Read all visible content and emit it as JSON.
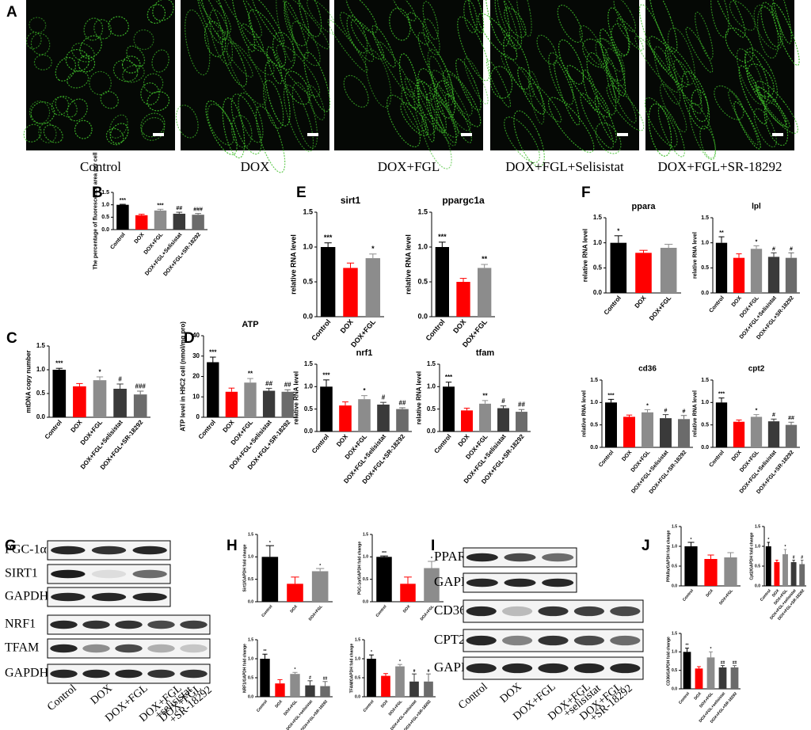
{
  "panel_labels": [
    "A",
    "B",
    "C",
    "D",
    "E",
    "F",
    "G",
    "H",
    "I",
    "J"
  ],
  "image_captions": [
    "Control",
    "DOX",
    "DOX+FGL",
    "DOX+FGL+Selisistat",
    "DOX+FGL+SR-18292"
  ],
  "blots": {
    "G": {
      "rows": [
        "PGC-1α",
        "SIRT1",
        "GAPDH",
        "NRF1",
        "TFAM",
        "GAPDH"
      ],
      "lanes": [
        [
          "Control"
        ],
        [
          "DOX"
        ],
        [
          "DOX+FGL"
        ],
        [
          "DOX+FGL",
          "+selisistat"
        ],
        [
          "DOX+FGL",
          "+SR-18292"
        ]
      ]
    },
    "I": {
      "rows": [
        "PPARα",
        "GAPDH",
        "CD36",
        "CPT2",
        "GAPDH"
      ],
      "lanes": [
        [
          "Control"
        ],
        [
          "DOX"
        ],
        [
          "DOX+FGL"
        ],
        [
          "DOX+FGL",
          "+selisistat"
        ],
        [
          "DOX+FGL",
          "+SR-18292"
        ]
      ]
    }
  },
  "chart_data": [
    {
      "type": "bar",
      "y_label": "The percentage of fluorescence area per cell",
      "categories": [
        "Control",
        "DOX",
        "DOX+FGL",
        "DOX+FGL+Selisistat",
        "DOX+FGL+SR-18292"
      ],
      "values": [
        1.0,
        0.58,
        0.77,
        0.64,
        0.6
      ],
      "errors": [
        0.02,
        0.04,
        0.05,
        0.06,
        0.05
      ],
      "annotations": [
        "***",
        null,
        "***",
        "##",
        "###"
      ],
      "colors": [
        "#000000",
        "#ff0000",
        "#8c8c8c",
        "#3a3a3a",
        "#6b6b6b"
      ],
      "ylim": [
        0,
        1.5
      ],
      "yticks": [
        {
          "value": 0,
          "label": "0.0"
        },
        {
          "value": 0.5,
          "label": "0.5"
        },
        {
          "value": 1,
          "label": "1.0"
        },
        {
          "value": 1.5,
          "label": "1.5"
        }
      ]
    },
    {
      "type": "bar",
      "y_label": "mtDNA copy number",
      "categories": [
        "Control",
        "DOX",
        "DOX+FGL",
        "DOX+FGL+Selisistat",
        "DOX+FGL+SR-18292"
      ],
      "values": [
        1.0,
        0.65,
        0.78,
        0.6,
        0.48
      ],
      "errors": [
        0.03,
        0.06,
        0.07,
        0.1,
        0.07
      ],
      "annotations": [
        "***",
        null,
        "*",
        "#",
        "###"
      ],
      "colors": [
        "#000000",
        "#ff0000",
        "#8c8c8c",
        "#3a3a3a",
        "#6b6b6b"
      ],
      "ylim": [
        0,
        1.5
      ],
      "yticks": [
        {
          "value": 0,
          "label": "0.0"
        },
        {
          "value": 0.5,
          "label": "0.5"
        },
        {
          "value": 1,
          "label": "1.0"
        },
        {
          "value": 1.5,
          "label": "1.5"
        }
      ]
    },
    {
      "type": "bar",
      "title": "ATP",
      "y_label": "ATP level in H9C2 cell (nmol/mg pro)",
      "categories": [
        "Control",
        "DOX",
        "DOX+FGL",
        "DOX+FGL+Selisistat",
        "DOX+FGL+SR-18292"
      ],
      "values": [
        27,
        12.5,
        17,
        13,
        12.5
      ],
      "errors": [
        2.5,
        1.8,
        2,
        1.2,
        1
      ],
      "annotations": [
        "***",
        null,
        "**",
        "##",
        "##"
      ],
      "colors": [
        "#000000",
        "#ff0000",
        "#8c8c8c",
        "#3a3a3a",
        "#6b6b6b"
      ],
      "ylim": [
        0,
        40
      ],
      "yticks": [
        0,
        10,
        20,
        30,
        40
      ]
    },
    {
      "type": "bar",
      "title": "sirt1",
      "y_label": "relative RNA level",
      "categories": [
        "Control",
        "DOX",
        "DOX+FGL"
      ],
      "values": [
        1.0,
        0.7,
        0.84
      ],
      "errors": [
        0.06,
        0.07,
        0.06
      ],
      "annotations": [
        "***",
        null,
        "*"
      ],
      "colors": [
        "#000000",
        "#ff0000",
        "#8c8c8c"
      ],
      "ylim": [
        0,
        1.5
      ],
      "yticks": [
        {
          "value": 0,
          "label": "0.0"
        },
        {
          "value": 0.5,
          "label": "0.5"
        },
        {
          "value": 1,
          "label": "1.0"
        },
        {
          "value": 1.5,
          "label": "1.5"
        }
      ]
    },
    {
      "type": "bar",
      "title": "ppargc1a",
      "y_label": "relative RNA level",
      "categories": [
        "Control",
        "DOX",
        "DOX+FGL"
      ],
      "values": [
        1.0,
        0.5,
        0.7
      ],
      "errors": [
        0.07,
        0.05,
        0.05
      ],
      "annotations": [
        "***",
        null,
        "**"
      ],
      "colors": [
        "#000000",
        "#ff0000",
        "#8c8c8c"
      ],
      "ylim": [
        0,
        1.5
      ],
      "yticks": [
        {
          "value": 0,
          "label": "0.0"
        },
        {
          "value": 0.5,
          "label": "0.5"
        },
        {
          "value": 1,
          "label": "1.0"
        },
        {
          "value": 1.5,
          "label": "1.5"
        }
      ]
    },
    {
      "type": "bar",
      "title": "nrf1",
      "y_label": "relative RNA level",
      "categories": [
        "Control",
        "DOX",
        "DOX+FGL",
        "DOX+FGL+Selisistat",
        "DOX+FGL+SR-18292"
      ],
      "values": [
        1.0,
        0.58,
        0.72,
        0.6,
        0.5
      ],
      "errors": [
        0.15,
        0.08,
        0.08,
        0.05,
        0.03
      ],
      "annotations": [
        "***",
        null,
        "*",
        "#",
        "##"
      ],
      "colors": [
        "#000000",
        "#ff0000",
        "#8c8c8c",
        "#3a3a3a",
        "#6b6b6b"
      ],
      "ylim": [
        0,
        1.5
      ],
      "yticks": [
        {
          "value": 0,
          "label": "0.0"
        },
        {
          "value": 0.5,
          "label": "0.5"
        },
        {
          "value": 1,
          "label": "1.0"
        },
        {
          "value": 1.5,
          "label": "1.5"
        }
      ]
    },
    {
      "type": "bar",
      "title": "tfam",
      "y_label": "relative RNA level",
      "categories": [
        "Control",
        "DOX",
        "DOX+FGL",
        "DOX+FGL+Selisistat",
        "DOX+FGL+SR-18292"
      ],
      "values": [
        1.0,
        0.47,
        0.62,
        0.52,
        0.44
      ],
      "errors": [
        0.1,
        0.05,
        0.07,
        0.05,
        0.05
      ],
      "annotations": [
        "***",
        null,
        "**",
        "#",
        "##"
      ],
      "colors": [
        "#000000",
        "#ff0000",
        "#8c8c8c",
        "#3a3a3a",
        "#6b6b6b"
      ],
      "ylim": [
        0,
        1.5
      ],
      "yticks": [
        {
          "value": 0,
          "label": "0.0"
        },
        {
          "value": 0.5,
          "label": "0.5"
        },
        {
          "value": 1,
          "label": "1.0"
        },
        {
          "value": 1.5,
          "label": "1.5"
        }
      ]
    },
    {
      "type": "bar",
      "title": "ppara",
      "y_label": "relative RNA level",
      "categories": [
        "Control",
        "DOX",
        "DOX+FGL"
      ],
      "values": [
        1.0,
        0.8,
        0.9
      ],
      "errors": [
        0.14,
        0.05,
        0.07
      ],
      "annotations": [
        "*",
        null,
        null
      ],
      "colors": [
        "#000000",
        "#ff0000",
        "#8c8c8c"
      ],
      "ylim": [
        0,
        1.5
      ],
      "yticks": [
        {
          "value": 0,
          "label": "0.0"
        },
        {
          "value": 0.5,
          "label": "0.5"
        },
        {
          "value": 1,
          "label": "1.0"
        },
        {
          "value": 1.5,
          "label": "1.5"
        }
      ]
    },
    {
      "type": "bar",
      "title": "lpl",
      "y_label": "relative RNA level",
      "categories": [
        "Control",
        "DOX",
        "DOX+FGL",
        "DOX+FGL+Selisistat",
        "DOX+FGL+SR-18292"
      ],
      "values": [
        1.0,
        0.7,
        0.88,
        0.72,
        0.7
      ],
      "errors": [
        0.12,
        0.08,
        0.06,
        0.08,
        0.1
      ],
      "annotations": [
        "**",
        null,
        "*",
        "#",
        "#"
      ],
      "colors": [
        "#000000",
        "#ff0000",
        "#8c8c8c",
        "#3a3a3a",
        "#6b6b6b"
      ],
      "ylim": [
        0,
        1.5
      ],
      "yticks": [
        {
          "value": 0,
          "label": "0.0"
        },
        {
          "value": 0.5,
          "label": "0.5"
        },
        {
          "value": 1,
          "label": "1.0"
        },
        {
          "value": 1.5,
          "label": "1.5"
        }
      ]
    },
    {
      "type": "bar",
      "title": "cd36",
      "y_label": "relative RNA level",
      "categories": [
        "Control",
        "DOX",
        "DOX+FGL",
        "DOX+FGL+Selisistat",
        "DOX+FGL+SR-18292"
      ],
      "values": [
        1.0,
        0.68,
        0.78,
        0.65,
        0.63
      ],
      "errors": [
        0.07,
        0.04,
        0.06,
        0.08,
        0.08
      ],
      "annotations": [
        "***",
        null,
        "*",
        "#",
        "#"
      ],
      "colors": [
        "#000000",
        "#ff0000",
        "#8c8c8c",
        "#3a3a3a",
        "#6b6b6b"
      ],
      "ylim": [
        0,
        1.5
      ],
      "yticks": [
        {
          "value": 0,
          "label": "0.0"
        },
        {
          "value": 0.5,
          "label": "0.5"
        },
        {
          "value": 1,
          "label": "1.0"
        },
        {
          "value": 1.5,
          "label": "1.5"
        }
      ]
    },
    {
      "type": "bar",
      "title": "cpt2",
      "y_label": "relative RNA level",
      "categories": [
        "Control",
        "DOX",
        "DOX+FGL",
        "DOX+FGL+Selisistat",
        "DOX+FGL+SR-18292"
      ],
      "values": [
        1.0,
        0.57,
        0.68,
        0.58,
        0.5
      ],
      "errors": [
        0.1,
        0.04,
        0.05,
        0.05,
        0.06
      ],
      "annotations": [
        "***",
        null,
        "*",
        "#",
        "##"
      ],
      "colors": [
        "#000000",
        "#ff0000",
        "#8c8c8c",
        "#3a3a3a",
        "#6b6b6b"
      ],
      "ylim": [
        0,
        1.5
      ],
      "yticks": [
        {
          "value": 0,
          "label": "0.0"
        },
        {
          "value": 0.5,
          "label": "0.5"
        },
        {
          "value": 1,
          "label": "1.0"
        },
        {
          "value": 1.5,
          "label": "1.5"
        }
      ]
    },
    {
      "type": "bar",
      "y_label": "Sirt1/GAPDH fold change",
      "categories": [
        "Control",
        "DOX",
        "DOX+FGL"
      ],
      "values": [
        1.0,
        0.4,
        0.68
      ],
      "errors": [
        0.25,
        0.15,
        0.06
      ],
      "annotations": [
        "*",
        null,
        "*"
      ],
      "colors": [
        "#000000",
        "#ff0000",
        "#8c8c8c"
      ],
      "ylim": [
        0,
        1.5
      ],
      "yticks": [
        {
          "value": 0,
          "label": "0.0"
        },
        {
          "value": 0.5,
          "label": "0.5"
        },
        {
          "value": 1,
          "label": "1.0"
        },
        {
          "value": 1.5,
          "label": "1.5"
        }
      ]
    },
    {
      "type": "bar",
      "y_label": "PGC-1α/GAPDH fold change",
      "categories": [
        "Control",
        "DOX",
        "DOX+FGL"
      ],
      "values": [
        1.0,
        0.4,
        0.75
      ],
      "errors": [
        0.02,
        0.15,
        0.15
      ],
      "annotations": [
        "***",
        null,
        "*"
      ],
      "colors": [
        "#000000",
        "#ff0000",
        "#8c8c8c"
      ],
      "ylim": [
        0,
        1.5
      ],
      "yticks": [
        {
          "value": 0,
          "label": "0.0"
        },
        {
          "value": 0.5,
          "label": "0.5"
        },
        {
          "value": 1,
          "label": "1.0"
        },
        {
          "value": 1.5,
          "label": "1.5"
        }
      ]
    },
    {
      "type": "bar",
      "y_label": "NRF1/GAPDH fold change",
      "categories": [
        "Control",
        "DOX",
        "DOX+FGL",
        "DOX+FGL+selisistat",
        "DOX+FGL+SR-18292"
      ],
      "values": [
        1.0,
        0.35,
        0.6,
        0.3,
        0.28
      ],
      "errors": [
        0.12,
        0.1,
        0.04,
        0.12,
        0.12
      ],
      "annotations": [
        "**",
        null,
        "*",
        "#",
        "##"
      ],
      "colors": [
        "#000000",
        "#ff0000",
        "#8c8c8c",
        "#3a3a3a",
        "#6b6b6b"
      ],
      "ylim": [
        0,
        1.5
      ],
      "yticks": [
        {
          "value": 0,
          "label": "0.0"
        },
        {
          "value": 0.5,
          "label": "0.5"
        },
        {
          "value": 1,
          "label": "1.0"
        },
        {
          "value": 1.5,
          "label": "1.5"
        }
      ]
    },
    {
      "type": "bar",
      "y_label": "TFAM/GAPDH fold change",
      "categories": [
        "Control",
        "DOX",
        "DOX+FGL",
        "DOX+FGL+selisistat",
        "DOX+FGL+SR-18292"
      ],
      "values": [
        1.0,
        0.55,
        0.8,
        0.4,
        0.4
      ],
      "errors": [
        0.1,
        0.06,
        0.05,
        0.2,
        0.2
      ],
      "annotations": [
        "*",
        null,
        "*",
        "#",
        "#"
      ],
      "colors": [
        "#000000",
        "#ff0000",
        "#8c8c8c",
        "#3a3a3a",
        "#6b6b6b"
      ],
      "ylim": [
        0,
        1.5
      ],
      "yticks": [
        {
          "value": 0,
          "label": "0.0"
        },
        {
          "value": 0.5,
          "label": "0.5"
        },
        {
          "value": 1,
          "label": "1.0"
        },
        {
          "value": 1.5,
          "label": "1.5"
        }
      ]
    },
    {
      "type": "bar",
      "y_label": "PPARα/GAPDH fold change",
      "categories": [
        "Control",
        "DOX",
        "DOX+FGL"
      ],
      "values": [
        1.0,
        0.68,
        0.72
      ],
      "errors": [
        0.1,
        0.1,
        0.12
      ],
      "annotations": [
        "*",
        null,
        null
      ],
      "colors": [
        "#000000",
        "#ff0000",
        "#8c8c8c"
      ],
      "ylim": [
        0,
        1.5
      ],
      "yticks": [
        {
          "value": 0,
          "label": "0.0"
        },
        {
          "value": 0.5,
          "label": "0.5"
        },
        {
          "value": 1,
          "label": "1.0"
        },
        {
          "value": 1.5,
          "label": "1.5"
        }
      ]
    },
    {
      "type": "bar",
      "y_label": "Cpt2/GAPDH fold change",
      "categories": [
        "Control",
        "DOX",
        "DOX+FGL",
        "DOX+FGL+selisistat",
        "DOX+FGL+SR-18292"
      ],
      "values": [
        1.0,
        0.6,
        0.8,
        0.6,
        0.55
      ],
      "errors": [
        0.1,
        0.05,
        0.12,
        0.05,
        0.1
      ],
      "annotations": [
        "*",
        null,
        "*",
        "#",
        "#"
      ],
      "colors": [
        "#000000",
        "#ff0000",
        "#8c8c8c",
        "#3a3a3a",
        "#6b6b6b"
      ],
      "ylim": [
        0,
        1.5
      ],
      "yticks": [
        {
          "value": 0,
          "label": "0.0"
        },
        {
          "value": 0.5,
          "label": "0.5"
        },
        {
          "value": 1,
          "label": "1.0"
        },
        {
          "value": 1.5,
          "label": "1.5"
        }
      ]
    },
    {
      "type": "bar",
      "y_label": "CD36/GAPDH fold change",
      "categories": [
        "Control",
        "DOX",
        "DOX+FGL",
        "DOX+FGL+selisistat",
        "DOX+FGL+SR-18292"
      ],
      "values": [
        1.0,
        0.55,
        0.85,
        0.58,
        0.58
      ],
      "errors": [
        0.1,
        0.05,
        0.15,
        0.05,
        0.05
      ],
      "annotations": [
        "**",
        null,
        "*",
        "##",
        "##"
      ],
      "colors": [
        "#000000",
        "#ff0000",
        "#8c8c8c",
        "#3a3a3a",
        "#6b6b6b"
      ],
      "ylim": [
        0,
        1.5
      ],
      "yticks": [
        {
          "value": 0,
          "label": "0.0"
        },
        {
          "value": 0.5,
          "label": "0.5"
        },
        {
          "value": 1,
          "label": "1.0"
        },
        {
          "value": 1.5,
          "label": "1.5"
        }
      ]
    }
  ]
}
